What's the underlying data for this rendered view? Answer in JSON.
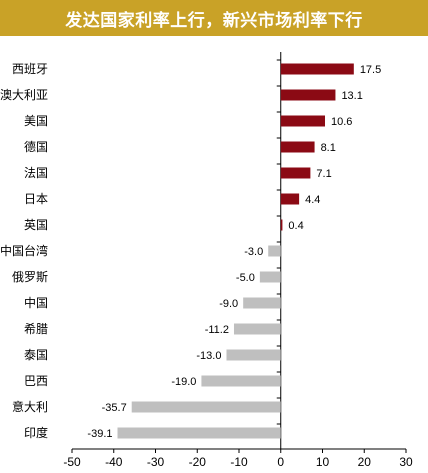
{
  "title": "发达国家利率上行，新兴市场利率下行",
  "chart_data": {
    "type": "bar",
    "orientation": "horizontal",
    "title": "发达国家利率上行，新兴市场利率下行",
    "categories": [
      "西班牙",
      "澳大利亚",
      "美国",
      "德国",
      "法国",
      "日本",
      "英国",
      "中国台湾",
      "俄罗斯",
      "中国",
      "希腊",
      "泰国",
      "巴西",
      "意大利",
      "印度"
    ],
    "values": [
      17.5,
      13.1,
      10.6,
      8.1,
      7.1,
      4.4,
      0.4,
      -3.0,
      -5.0,
      -9.0,
      -11.2,
      -13.0,
      -19.0,
      -35.7,
      -39.1
    ],
    "value_labels": [
      "17.5",
      "13.1",
      "10.6",
      "8.1",
      "7.1",
      "4.4",
      "0.4",
      "-3.0",
      "-5.0",
      "-9.0",
      "-11.2",
      "-13.0",
      "-19.0",
      "-35.7",
      "-39.1"
    ],
    "xlim": [
      -50,
      30
    ],
    "xticks": [
      "-50",
      "-40",
      "-30",
      "-20",
      "-10",
      "0",
      "10",
      "20",
      "30"
    ],
    "xtick_values": [
      -50,
      -40,
      -30,
      -20,
      -10,
      0,
      10,
      20,
      30
    ],
    "xlabel": "",
    "ylabel": "",
    "legend": "none",
    "grid": false,
    "colors": {
      "positive": "#8b0a14",
      "negative": "#bfbfbf",
      "title_bg": "#c9a227"
    }
  }
}
